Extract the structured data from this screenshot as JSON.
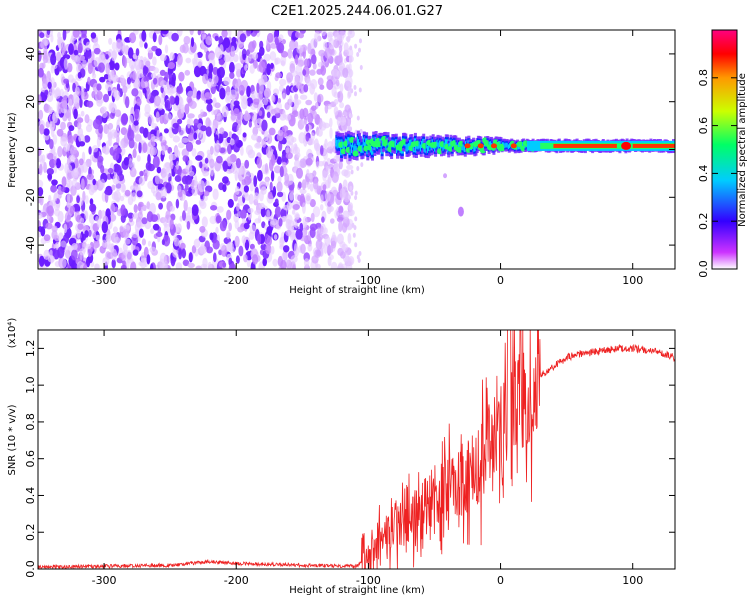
{
  "title": "C2E1.2025.244.06.01.G27",
  "chart_data": [
    {
      "type": "heatmap",
      "name": "spectrogram",
      "xlabel": "Height of straight line (km)",
      "ylabel": "Frequency (Hz)",
      "xlim": [
        -350,
        132
      ],
      "ylim": [
        -50,
        50
      ],
      "xticks": [
        -300,
        -200,
        -100,
        0,
        100
      ],
      "yticks": [
        -40,
        -20,
        0,
        20,
        40
      ],
      "noise_region": {
        "x": [
          -350,
          -113
        ],
        "y": [
          -50,
          50
        ],
        "color": "violet"
      },
      "signal_band": {
        "x_start": -125,
        "x_end": 132,
        "center_frequency": 1.5,
        "approx_width": 6
      },
      "colorbar": {
        "label": "Normalized spectral amplitude",
        "range": [
          0,
          1
        ],
        "ticks": [
          "0.0",
          "0.2",
          "0.4",
          "0.6",
          "0.8"
        ],
        "colors": [
          "#ffffff",
          "#cc33ff",
          "#3300ff",
          "#00ccff",
          "#00ff66",
          "#ccff00",
          "#ff9900",
          "#ff0000",
          "#ff0080"
        ]
      }
    },
    {
      "type": "line",
      "name": "snr",
      "xlabel": "Height of straight line (km)",
      "ylabel": "SNR (10 * v/v)",
      "yscale_note": "(x10⁴)",
      "xlim": [
        -350,
        132
      ],
      "ylim": [
        0,
        1.3
      ],
      "xticks": [
        -300,
        -200,
        -100,
        0,
        100
      ],
      "yticks": [
        "0.0",
        "0.2",
        "0.4",
        "0.6",
        "0.8",
        "1.0",
        "1.2"
      ],
      "color": "#ee2222",
      "series": [
        {
          "name": "SNR",
          "x": [
            -350,
            -300,
            -250,
            -220,
            -200,
            -150,
            -110,
            -100,
            -90,
            -80,
            -70,
            -60,
            -50,
            -40,
            -30,
            -20,
            -10,
            0,
            5,
            10,
            20,
            30,
            40,
            50,
            60,
            70,
            80,
            90,
            100,
            110,
            120,
            132
          ],
          "y": [
            0.01,
            0.015,
            0.02,
            0.04,
            0.03,
            0.02,
            0.015,
            0.05,
            0.15,
            0.25,
            0.3,
            0.35,
            0.4,
            0.45,
            0.5,
            0.55,
            0.7,
            0.8,
            0.85,
            0.9,
            0.95,
            1.05,
            1.1,
            1.15,
            1.17,
            1.18,
            1.19,
            1.2,
            1.2,
            1.19,
            1.18,
            1.15
          ]
        }
      ]
    }
  ]
}
